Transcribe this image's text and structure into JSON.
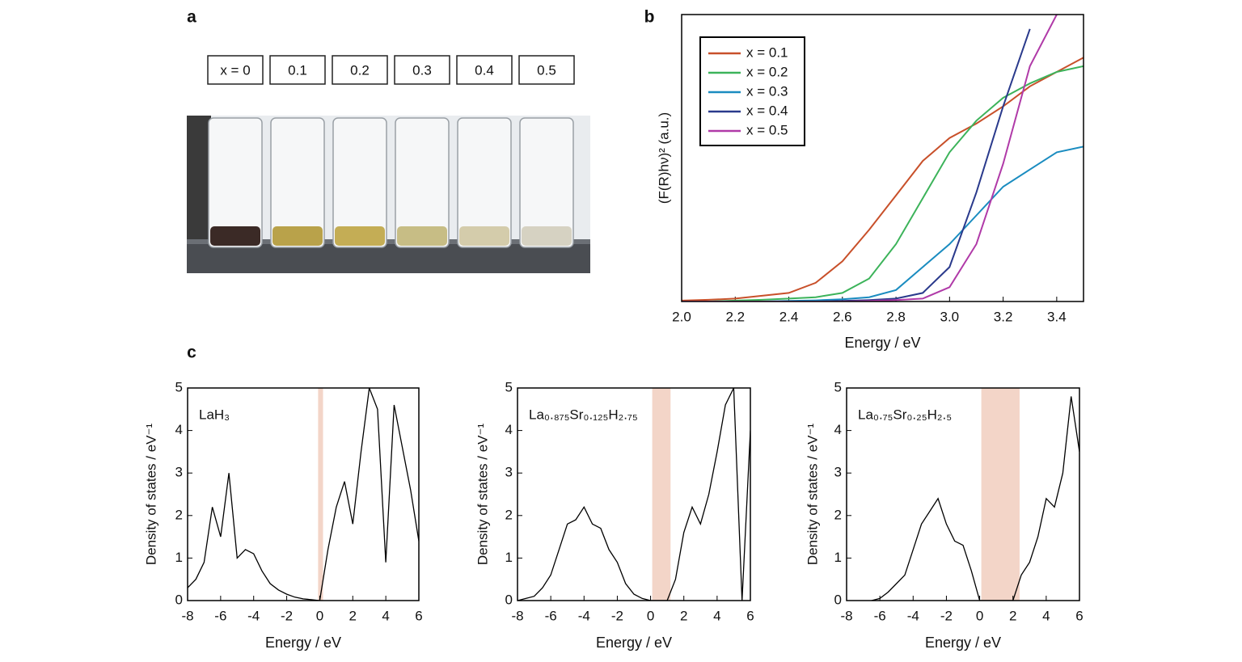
{
  "panel_labels": [
    "a",
    "b",
    "c"
  ],
  "photo": {
    "labels": [
      "x = 0",
      "0.1",
      "0.2",
      "0.3",
      "0.4",
      "0.5"
    ]
  },
  "chart_data": [
    {
      "type": "line",
      "xlabel": "Energy / eV",
      "ylabel": "(F(R)hν)² (a.u.)",
      "x": [
        2.0,
        2.1,
        2.2,
        2.3,
        2.4,
        2.5,
        2.6,
        2.7,
        2.8,
        2.9,
        3.0,
        3.1,
        3.2,
        3.3,
        3.4,
        3.5
      ],
      "xlim": [
        2.0,
        3.5
      ],
      "xticks": [
        {
          "value": 2.0,
          "label": "2.0"
        },
        2.2,
        2.4,
        2.6,
        2.8,
        {
          "value": 3.0,
          "label": "3.0"
        },
        3.2,
        3.4
      ],
      "ylim": [
        0,
        100
      ],
      "legend": "upper left",
      "series": [
        {
          "name": "x = 0.1",
          "color": "#c8502a",
          "values": [
            0.3,
            0.6,
            1,
            2,
            3,
            6.5,
            14,
            25,
            37,
            49,
            57,
            62,
            68,
            75,
            80,
            85
          ]
        },
        {
          "name": "x = 0.2",
          "color": "#3cb35a",
          "values": [
            0,
            0,
            0.3,
            0.6,
            1,
            1.5,
            3,
            8,
            20,
            36,
            52,
            63,
            71,
            76,
            80,
            82
          ]
        },
        {
          "name": "x = 0.3",
          "color": "#1a8cc0",
          "values": [
            0,
            0,
            0,
            0,
            0.2,
            0.4,
            0.8,
            1.5,
            4,
            12,
            20,
            30,
            40,
            46,
            52,
            54
          ]
        },
        {
          "name": "x = 0.4",
          "color": "#2a3a8c",
          "values": [
            0,
            0,
            0,
            0,
            0,
            0,
            0.2,
            0.5,
            1,
            3,
            12,
            38,
            68,
            95,
            null,
            null
          ]
        },
        {
          "name": "x = 0.5",
          "color": "#b03aa8",
          "values": [
            0,
            0,
            0,
            0,
            0,
            0,
            0,
            0.2,
            0.5,
            1,
            5,
            20,
            48,
            82,
            100,
            null
          ]
        }
      ]
    },
    {
      "type": "line",
      "annotation": "LaH₃",
      "xlabel": "Energy / eV",
      "ylabel": "Density of states / eV⁻¹",
      "x": [
        -8,
        -7.5,
        -7,
        -6.5,
        -6,
        -5.5,
        -5,
        -4.5,
        -4,
        -3.5,
        -3,
        -2.5,
        -2,
        -1.5,
        -1,
        -0.5,
        0,
        0.5,
        1,
        1.5,
        2,
        2.5,
        3,
        3.5,
        4,
        4.5,
        5,
        5.5,
        6
      ],
      "values": [
        0.3,
        0.5,
        0.9,
        2.2,
        1.5,
        3,
        1,
        1.2,
        1.1,
        0.7,
        0.4,
        0.25,
        0.15,
        0.08,
        0.04,
        0.02,
        0,
        1.2,
        2.2,
        2.8,
        1.8,
        3.5,
        5,
        4.5,
        0.9,
        4.6,
        3.6,
        2.6,
        1.4
      ],
      "color": "#000000",
      "gap": [
        -0.1,
        0.2
      ],
      "gap_color": "#f3d5c8",
      "xlim": [
        -8,
        6
      ],
      "xticks": [
        -8,
        -6,
        -4,
        -2,
        0,
        2,
        4,
        6
      ],
      "ylim": [
        0,
        5
      ],
      "yticks": [
        0,
        1,
        2,
        3,
        4,
        5
      ]
    },
    {
      "type": "line",
      "annotation": "La₀.₈₇₅Sr₀.₁₂₅H₂.₇₅",
      "xlabel": "Energy / eV",
      "ylabel": "Density of states / eV⁻¹",
      "x": [
        -8,
        -7.5,
        -7,
        -6.5,
        -6,
        -5.5,
        -5,
        -4.5,
        -4,
        -3.5,
        -3,
        -2.5,
        -2,
        -1.5,
        -1,
        -0.5,
        0,
        0.5,
        1,
        1.5,
        2,
        2.5,
        3,
        3.5,
        4,
        4.5,
        5,
        5.5,
        6
      ],
      "values": [
        0,
        0.05,
        0.1,
        0.3,
        0.6,
        1.2,
        1.8,
        1.9,
        2.2,
        1.8,
        1.7,
        1.2,
        0.9,
        0.4,
        0.15,
        0.05,
        0,
        0,
        0,
        0.5,
        1.6,
        2.2,
        1.8,
        2.5,
        3.5,
        4.6,
        5,
        0,
        4
      ],
      "color": "#000000",
      "gap": [
        0.1,
        1.2
      ],
      "gap_color": "#f3d5c8",
      "xlim": [
        -8,
        6
      ],
      "xticks": [
        -8,
        -6,
        -4,
        -2,
        0,
        2,
        4,
        6
      ],
      "ylim": [
        0,
        5
      ],
      "yticks": [
        0,
        1,
        2,
        3,
        4,
        5
      ]
    },
    {
      "type": "line",
      "annotation": "La₀.₇₅Sr₀.₂₅H₂.₅",
      "xlabel": "Energy / eV",
      "ylabel": "Density of states / eV⁻¹",
      "x": [
        -8,
        -7.5,
        -7,
        -6.5,
        -6,
        -5.5,
        -5,
        -4.5,
        -4,
        -3.5,
        -3,
        -2.5,
        -2,
        -1.5,
        -1,
        -0.5,
        0,
        0.5,
        1,
        1.5,
        2,
        2.5,
        3,
        3.5,
        4,
        4.5,
        5,
        5.5,
        6
      ],
      "values": [
        null,
        null,
        null,
        0,
        0.05,
        0.2,
        0.4,
        0.6,
        1.2,
        1.8,
        2.1,
        2.4,
        1.8,
        1.4,
        1.3,
        0.7,
        0,
        0,
        0,
        0,
        0,
        0.6,
        0.9,
        1.5,
        2.4,
        2.2,
        3,
        4.8,
        3.5
      ],
      "color": "#000000",
      "gap": [
        0.1,
        2.4
      ],
      "gap_color": "#f3d5c8",
      "xlim": [
        -8,
        6
      ],
      "xticks": [
        -8,
        -6,
        -4,
        -2,
        0,
        2,
        4,
        6
      ],
      "ylim": [
        0,
        5
      ],
      "yticks": [
        0,
        1,
        2,
        3,
        4,
        5
      ]
    }
  ]
}
